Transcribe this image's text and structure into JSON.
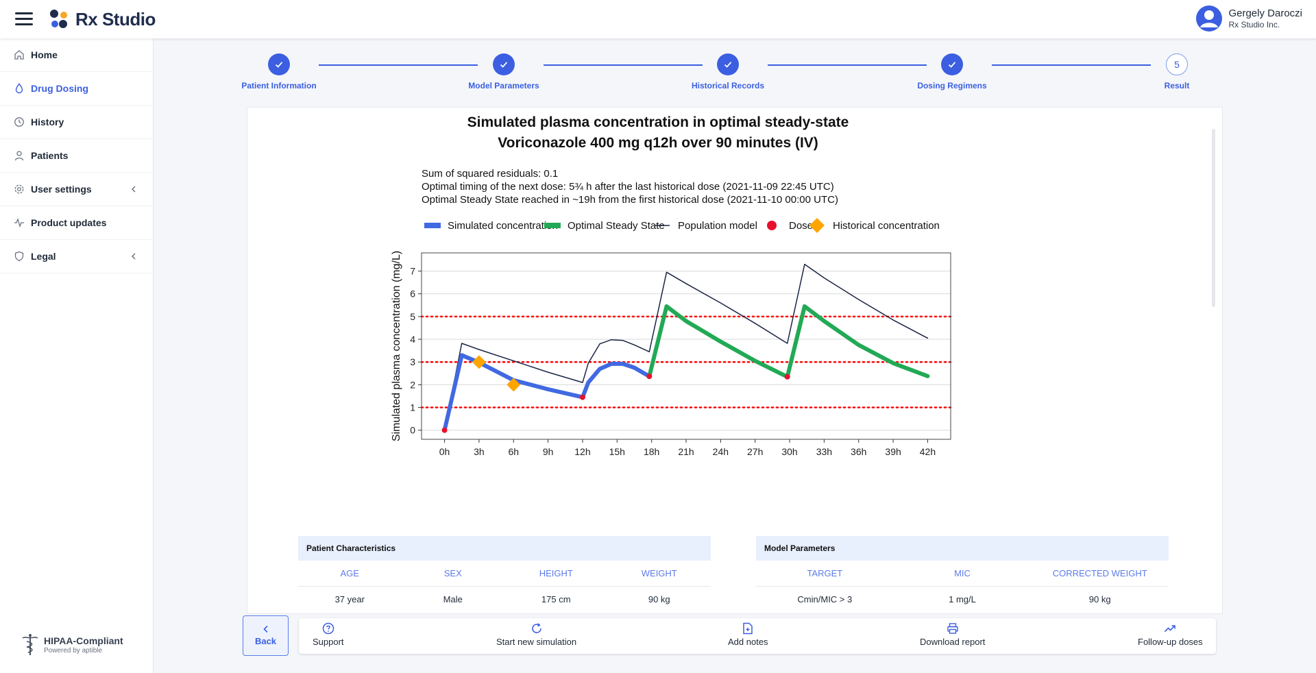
{
  "app": {
    "name": "Rx Studio"
  },
  "user": {
    "name": "Gergely Daroczi",
    "org": "Rx Studio Inc."
  },
  "sidebar": {
    "items": [
      {
        "label": "Home",
        "icon": "home-icon",
        "active": false
      },
      {
        "label": "Drug Dosing",
        "icon": "drop-icon",
        "active": true
      },
      {
        "label": "History",
        "icon": "clock-icon",
        "active": false
      },
      {
        "label": "Patients",
        "icon": "user-icon",
        "active": false
      },
      {
        "label": "User settings",
        "icon": "gear-icon",
        "active": false,
        "expandable": true
      },
      {
        "label": "Product updates",
        "icon": "activity-icon",
        "active": false
      },
      {
        "label": "Legal",
        "icon": "shield-icon",
        "active": false,
        "expandable": true
      }
    ],
    "hipaa": {
      "title": "HIPAA-Compliant",
      "sub": "Powered by aptible"
    }
  },
  "stepper": {
    "steps": [
      {
        "label": "Patient Information",
        "state": "done"
      },
      {
        "label": "Model Parameters",
        "state": "done"
      },
      {
        "label": "Historical Records",
        "state": "done"
      },
      {
        "label": "Dosing Regimens",
        "state": "done"
      },
      {
        "label": "Result",
        "state": "current",
        "number": "5"
      }
    ]
  },
  "result": {
    "title_line1": "Simulated plasma concentration in optimal steady-state",
    "title_line2": "Voriconazole 400 mg q12h over 90 minutes (IV)",
    "info": [
      "Sum of squared residuals: 0.1",
      "Optimal timing of the next dose: 5¾ h after the last historical dose (2021-11-09 22:45 UTC)",
      "Optimal Steady State reached in ~19h from the first historical dose (2021-11-10 00:00 UTC)"
    ]
  },
  "chart_data": {
    "type": "line",
    "xlabel": "",
    "ylabel": "Simulated plasma concentration (mg/L)",
    "x_ticks": [
      "0h",
      "3h",
      "6h",
      "9h",
      "12h",
      "15h",
      "18h",
      "21h",
      "24h",
      "27h",
      "30h",
      "33h",
      "36h",
      "39h",
      "42h"
    ],
    "x_range": [
      -2,
      44
    ],
    "ylim": [
      -0.4,
      7.8
    ],
    "y_ticks": [
      0,
      1,
      2,
      3,
      4,
      5,
      6,
      7
    ],
    "reference_lines": [
      1,
      3,
      5
    ],
    "colors": {
      "simulated": "#4169e1",
      "optimal": "#22a955",
      "population": "#1a2344",
      "dose": "#e8112d",
      "historical": "#ffa500",
      "reference": "#ff0000"
    },
    "legend": [
      "Simulated concentration",
      "Optimal Steady State",
      "Population model",
      "Dose",
      "Historical concentration"
    ],
    "series": [
      {
        "name": "Simulated concentration",
        "points": [
          [
            0,
            0
          ],
          [
            1.5,
            3.3
          ],
          [
            3,
            2.98
          ],
          [
            6,
            2.2
          ],
          [
            9,
            1.8
          ],
          [
            12,
            1.45
          ],
          [
            12.5,
            2.1
          ],
          [
            13.5,
            2.7
          ],
          [
            14.5,
            2.92
          ],
          [
            15.5,
            2.92
          ],
          [
            16.5,
            2.75
          ],
          [
            17.8,
            2.37
          ]
        ]
      },
      {
        "name": "Optimal Steady State",
        "points": [
          [
            17.8,
            2.37
          ],
          [
            19.3,
            5.45
          ],
          [
            21,
            4.8
          ],
          [
            24,
            3.9
          ],
          [
            27,
            3.05
          ],
          [
            29.8,
            2.35
          ],
          [
            31.3,
            5.45
          ],
          [
            33,
            4.8
          ],
          [
            36,
            3.75
          ],
          [
            39,
            2.95
          ],
          [
            42,
            2.38
          ]
        ]
      },
      {
        "name": "Population model",
        "points": [
          [
            0,
            0
          ],
          [
            1.5,
            3.82
          ],
          [
            3,
            3.55
          ],
          [
            6,
            3.05
          ],
          [
            9,
            2.55
          ],
          [
            12,
            2.1
          ],
          [
            12.5,
            2.95
          ],
          [
            13.5,
            3.8
          ],
          [
            14.5,
            3.98
          ],
          [
            15.5,
            3.95
          ],
          [
            16.5,
            3.75
          ],
          [
            17.8,
            3.45
          ],
          [
            19.3,
            6.95
          ],
          [
            21,
            6.45
          ],
          [
            24,
            5.6
          ],
          [
            27,
            4.7
          ],
          [
            29.8,
            3.82
          ],
          [
            31.3,
            7.3
          ],
          [
            33,
            6.7
          ],
          [
            36,
            5.75
          ],
          [
            39,
            4.85
          ],
          [
            42,
            4.05
          ]
        ]
      }
    ],
    "doses": [
      [
        0,
        0
      ],
      [
        12,
        1.45
      ],
      [
        17.8,
        2.37
      ],
      [
        29.8,
        2.35
      ]
    ],
    "historical": [
      [
        3,
        3.0
      ],
      [
        6,
        2.0
      ]
    ]
  },
  "patient_table": {
    "title": "Patient Characteristics",
    "columns": [
      "AGE",
      "SEX",
      "HEIGHT",
      "WEIGHT"
    ],
    "row": [
      "37 year",
      "Male",
      "175 cm",
      "90 kg"
    ]
  },
  "model_table": {
    "title": "Model Parameters",
    "columns": [
      "TARGET",
      "MIC",
      "CORRECTED WEIGHT"
    ],
    "row": [
      "Cmin/MIC > 3",
      "1 mg/L",
      "90 kg"
    ]
  },
  "actions": {
    "back": "Back",
    "support": "Support",
    "new_sim": "Start new simulation",
    "notes": "Add notes",
    "download": "Download report",
    "followup": "Follow-up doses"
  }
}
